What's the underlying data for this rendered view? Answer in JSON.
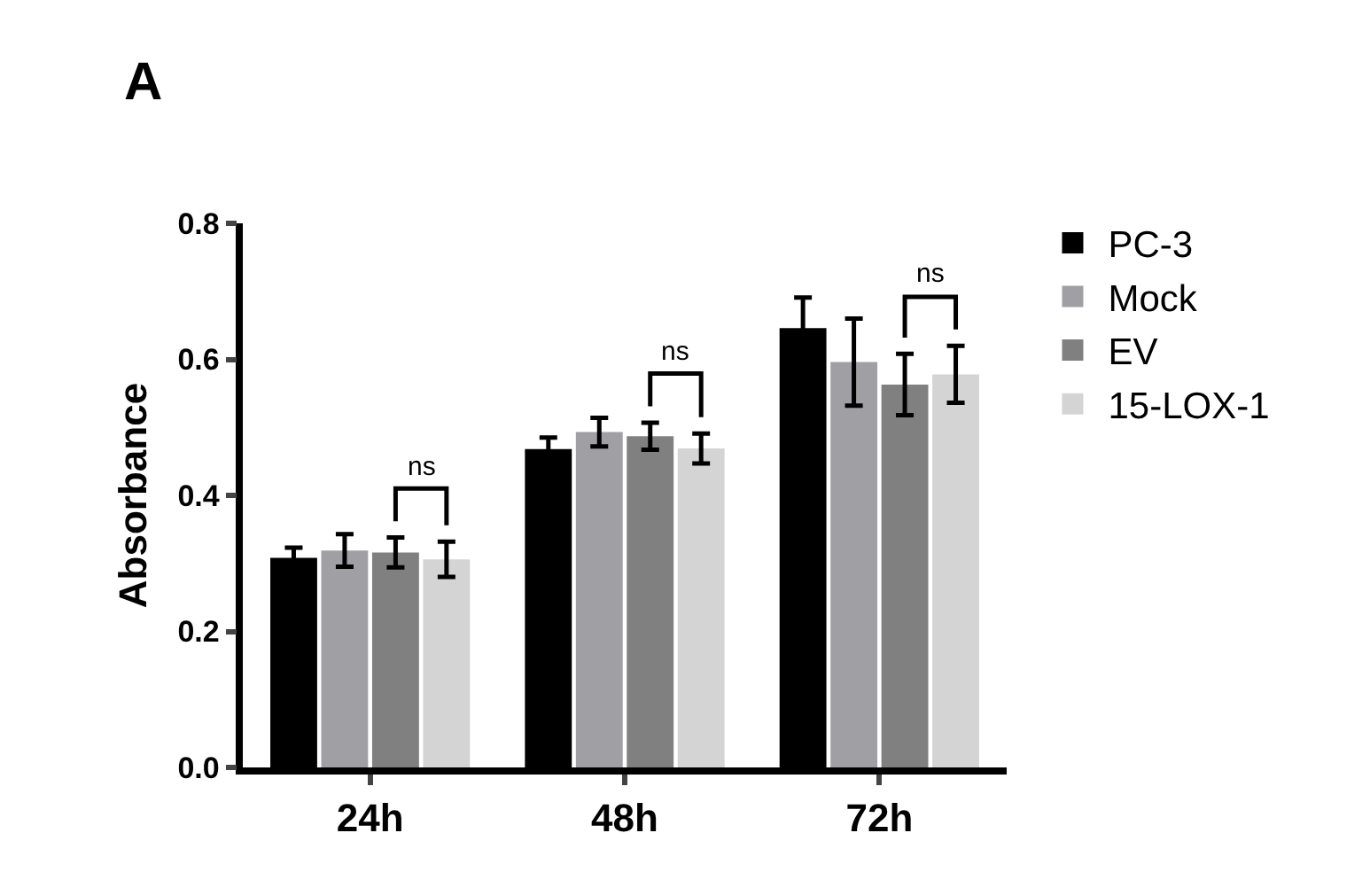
{
  "chart_data": {
    "type": "bar",
    "ylabel": "Absorbance",
    "categories": [
      "24h",
      "48h",
      "72h"
    ],
    "series": [
      {
        "name": "PC-3",
        "color": "#000000",
        "values": [
          0.308,
          0.468,
          0.646
        ],
        "errors": [
          0.015,
          0.017,
          0.045
        ]
      },
      {
        "name": "Mock",
        "color": "#a0a0a4",
        "values": [
          0.319,
          0.493,
          0.596
        ],
        "errors": [
          0.024,
          0.021,
          0.064
        ]
      },
      {
        "name": "EV",
        "color": "#808080",
        "values": [
          0.316,
          0.487,
          0.563
        ],
        "errors": [
          0.022,
          0.02,
          0.045
        ]
      },
      {
        "name": "15-LOX-1",
        "color": "#d4d4d4",
        "values": [
          0.306,
          0.469,
          0.578
        ],
        "errors": [
          0.026,
          0.022,
          0.042
        ]
      }
    ],
    "ylim": [
      0,
      0.8
    ],
    "yticks": [
      "0.0",
      0.2,
      0.4,
      0.6,
      0.8
    ],
    "grid": false,
    "legend": "top right",
    "annotations": [
      "A",
      "ns",
      "ns",
      "ns"
    ]
  }
}
